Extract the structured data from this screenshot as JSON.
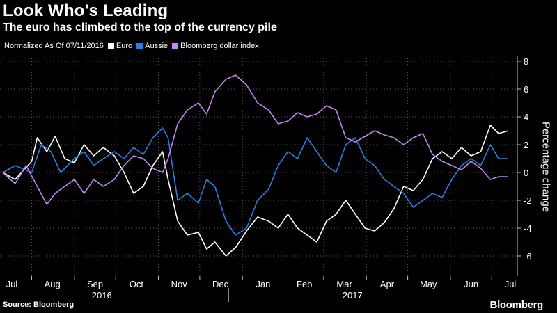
{
  "title": "Look Who's Leading",
  "subtitle": "The euro has climbed to the top of the currency pile",
  "legend_note": "Normalized As Of 07/11/2016",
  "source": "Source: Bloomberg",
  "brand": "Bloomberg",
  "chart_data": {
    "type": "line",
    "ylabel": "Percentage change",
    "ylim": [
      -7,
      8
    ],
    "yticks": [
      8,
      6,
      4,
      2,
      0,
      -2,
      -4,
      -6
    ],
    "grid": true,
    "legend_position": "top-left",
    "x_start": "2016-07-11",
    "x_end": "2017-07-13",
    "month_ticks": [
      {
        "label": "Jul",
        "date": "2016-07-01"
      },
      {
        "label": "Aug",
        "date": "2016-08-01"
      },
      {
        "label": "Sep",
        "date": "2016-09-01"
      },
      {
        "label": "Oct",
        "date": "2016-10-01"
      },
      {
        "label": "Nov",
        "date": "2016-11-01"
      },
      {
        "label": "Dec",
        "date": "2016-12-01"
      },
      {
        "label": "Jan",
        "date": "2017-01-01"
      },
      {
        "label": "Feb",
        "date": "2017-02-01"
      },
      {
        "label": "Mar",
        "date": "2017-03-01"
      },
      {
        "label": "Apr",
        "date": "2017-04-01"
      },
      {
        "label": "May",
        "date": "2017-05-01"
      },
      {
        "label": "Jun",
        "date": "2017-06-01"
      },
      {
        "label": "Jul",
        "date": "2017-07-01"
      }
    ],
    "year_labels": [
      {
        "label": "2016",
        "date": "2016-10-01"
      },
      {
        "label": "2017",
        "date": "2017-04-01"
      }
    ],
    "series": [
      {
        "name": "Euro",
        "color": "#ffffff",
        "points": [
          [
            "2016-07-11",
            0
          ],
          [
            "2016-07-20",
            -0.5
          ],
          [
            "2016-08-01",
            0.8
          ],
          [
            "2016-08-05",
            2.5
          ],
          [
            "2016-08-12",
            1.5
          ],
          [
            "2016-08-18",
            2.6
          ],
          [
            "2016-08-25",
            1.0
          ],
          [
            "2016-09-01",
            0.7
          ],
          [
            "2016-09-08",
            2.0
          ],
          [
            "2016-09-15",
            1.2
          ],
          [
            "2016-09-22",
            1.8
          ],
          [
            "2016-09-30",
            1.2
          ],
          [
            "2016-10-07",
            0.0
          ],
          [
            "2016-10-14",
            -1.5
          ],
          [
            "2016-10-21",
            -1.0
          ],
          [
            "2016-10-28",
            0.5
          ],
          [
            "2016-11-04",
            1.5
          ],
          [
            "2016-11-08",
            -0.5
          ],
          [
            "2016-11-15",
            -3.5
          ],
          [
            "2016-11-22",
            -4.5
          ],
          [
            "2016-11-30",
            -4.3
          ],
          [
            "2016-12-06",
            -5.5
          ],
          [
            "2016-12-12",
            -5.0
          ],
          [
            "2016-12-20",
            -6.0
          ],
          [
            "2016-12-27",
            -5.4
          ],
          [
            "2017-01-04",
            -4.2
          ],
          [
            "2017-01-12",
            -3.2
          ],
          [
            "2017-01-20",
            -3.5
          ],
          [
            "2017-01-27",
            -4.0
          ],
          [
            "2017-02-03",
            -3.0
          ],
          [
            "2017-02-10",
            -4.0
          ],
          [
            "2017-02-17",
            -4.5
          ],
          [
            "2017-02-24",
            -5.0
          ],
          [
            "2017-03-03",
            -3.5
          ],
          [
            "2017-03-10",
            -3.0
          ],
          [
            "2017-03-17",
            -2.0
          ],
          [
            "2017-03-24",
            -3.0
          ],
          [
            "2017-03-31",
            -4.0
          ],
          [
            "2017-04-07",
            -4.2
          ],
          [
            "2017-04-14",
            -3.6
          ],
          [
            "2017-04-21",
            -2.6
          ],
          [
            "2017-04-28",
            -1.0
          ],
          [
            "2017-05-05",
            -1.3
          ],
          [
            "2017-05-12",
            -0.5
          ],
          [
            "2017-05-19",
            1.0
          ],
          [
            "2017-05-26",
            1.5
          ],
          [
            "2017-06-02",
            1.0
          ],
          [
            "2017-06-09",
            1.8
          ],
          [
            "2017-06-16",
            1.2
          ],
          [
            "2017-06-23",
            1.5
          ],
          [
            "2017-06-30",
            3.4
          ],
          [
            "2017-07-06",
            2.8
          ],
          [
            "2017-07-13",
            3.0
          ]
        ]
      },
      {
        "name": "Aussie",
        "color": "#2c7fe2",
        "points": [
          [
            "2016-07-11",
            0
          ],
          [
            "2016-07-20",
            0.5
          ],
          [
            "2016-08-01",
            0.0
          ],
          [
            "2016-08-08",
            2.0
          ],
          [
            "2016-08-15",
            1.5
          ],
          [
            "2016-08-22",
            0.0
          ],
          [
            "2016-09-01",
            1.0
          ],
          [
            "2016-09-08",
            1.5
          ],
          [
            "2016-09-15",
            0.5
          ],
          [
            "2016-09-22",
            1.0
          ],
          [
            "2016-09-30",
            1.5
          ],
          [
            "2016-10-07",
            1.0
          ],
          [
            "2016-10-14",
            1.8
          ],
          [
            "2016-10-21",
            1.3
          ],
          [
            "2016-10-28",
            2.5
          ],
          [
            "2016-11-04",
            3.2
          ],
          [
            "2016-11-08",
            2.5
          ],
          [
            "2016-11-15",
            -2.0
          ],
          [
            "2016-11-22",
            -1.5
          ],
          [
            "2016-11-30",
            -2.2
          ],
          [
            "2016-12-06",
            -0.5
          ],
          [
            "2016-12-12",
            -1.0
          ],
          [
            "2016-12-20",
            -3.5
          ],
          [
            "2016-12-27",
            -4.5
          ],
          [
            "2017-01-04",
            -4.0
          ],
          [
            "2017-01-12",
            -2.0
          ],
          [
            "2017-01-20",
            -1.2
          ],
          [
            "2017-01-27",
            0.5
          ],
          [
            "2017-02-03",
            1.5
          ],
          [
            "2017-02-10",
            1.0
          ],
          [
            "2017-02-17",
            2.5
          ],
          [
            "2017-02-24",
            1.5
          ],
          [
            "2017-03-03",
            0.5
          ],
          [
            "2017-03-10",
            0.0
          ],
          [
            "2017-03-17",
            2.0
          ],
          [
            "2017-03-24",
            2.5
          ],
          [
            "2017-03-31",
            1.0
          ],
          [
            "2017-04-07",
            0.5
          ],
          [
            "2017-04-14",
            -0.5
          ],
          [
            "2017-04-21",
            -1.0
          ],
          [
            "2017-04-28",
            -1.5
          ],
          [
            "2017-05-05",
            -2.5
          ],
          [
            "2017-05-12",
            -2.0
          ],
          [
            "2017-05-19",
            -1.5
          ],
          [
            "2017-05-26",
            -1.8
          ],
          [
            "2017-06-02",
            -0.5
          ],
          [
            "2017-06-09",
            0.5
          ],
          [
            "2017-06-16",
            1.0
          ],
          [
            "2017-06-23",
            0.5
          ],
          [
            "2017-06-30",
            2.0
          ],
          [
            "2017-07-06",
            1.0
          ],
          [
            "2017-07-13",
            1.0
          ]
        ]
      },
      {
        "name": "Bloomberg dollar index",
        "color": "#c387f2",
        "points": [
          [
            "2016-07-11",
            0
          ],
          [
            "2016-07-20",
            -0.8
          ],
          [
            "2016-07-28",
            0.5
          ],
          [
            "2016-08-05",
            -1.0
          ],
          [
            "2016-08-12",
            -2.3
          ],
          [
            "2016-08-18",
            -1.5
          ],
          [
            "2016-08-25",
            -1.0
          ],
          [
            "2016-09-01",
            -0.5
          ],
          [
            "2016-09-08",
            -1.5
          ],
          [
            "2016-09-15",
            -0.5
          ],
          [
            "2016-09-22",
            -1.0
          ],
          [
            "2016-09-30",
            -0.5
          ],
          [
            "2016-10-07",
            0.5
          ],
          [
            "2016-10-14",
            1.2
          ],
          [
            "2016-10-21",
            1.0
          ],
          [
            "2016-10-28",
            0.3
          ],
          [
            "2016-11-04",
            0.0
          ],
          [
            "2016-11-08",
            1.0
          ],
          [
            "2016-11-15",
            3.5
          ],
          [
            "2016-11-22",
            4.5
          ],
          [
            "2016-11-30",
            5.0
          ],
          [
            "2016-12-06",
            4.2
          ],
          [
            "2016-12-12",
            5.8
          ],
          [
            "2016-12-20",
            6.7
          ],
          [
            "2016-12-27",
            7.0
          ],
          [
            "2017-01-04",
            6.3
          ],
          [
            "2017-01-12",
            5.0
          ],
          [
            "2017-01-20",
            4.5
          ],
          [
            "2017-01-27",
            3.5
          ],
          [
            "2017-02-03",
            3.7
          ],
          [
            "2017-02-10",
            4.3
          ],
          [
            "2017-02-17",
            4.0
          ],
          [
            "2017-02-24",
            4.2
          ],
          [
            "2017-03-03",
            4.8
          ],
          [
            "2017-03-10",
            4.5
          ],
          [
            "2017-03-17",
            2.5
          ],
          [
            "2017-03-24",
            2.2
          ],
          [
            "2017-03-31",
            2.6
          ],
          [
            "2017-04-07",
            3.0
          ],
          [
            "2017-04-14",
            2.7
          ],
          [
            "2017-04-21",
            2.5
          ],
          [
            "2017-04-28",
            2.0
          ],
          [
            "2017-05-05",
            2.5
          ],
          [
            "2017-05-12",
            2.8
          ],
          [
            "2017-05-19",
            1.3
          ],
          [
            "2017-05-26",
            0.8
          ],
          [
            "2017-06-02",
            0.5
          ],
          [
            "2017-06-09",
            0.2
          ],
          [
            "2017-06-16",
            0.8
          ],
          [
            "2017-06-23",
            0.3
          ],
          [
            "2017-06-30",
            -0.5
          ],
          [
            "2017-07-06",
            -0.3
          ],
          [
            "2017-07-13",
            -0.3
          ]
        ]
      }
    ]
  }
}
